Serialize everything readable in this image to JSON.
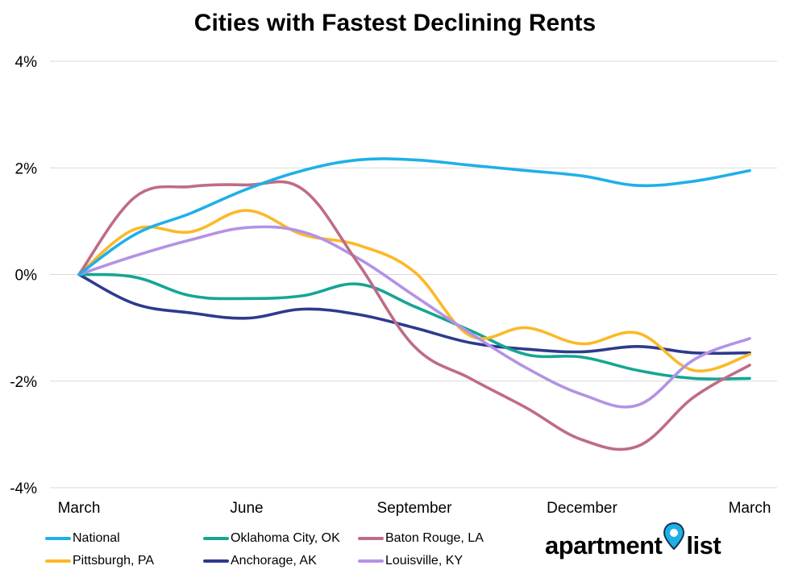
{
  "chart_data": {
    "type": "line",
    "title": "Cities with Fastest Declining Rents",
    "xlabel": "",
    "ylabel": "",
    "ylim": [
      -4,
      4
    ],
    "yticks": [
      4,
      2,
      0,
      -2,
      -4
    ],
    "ytick_labels": [
      "4%",
      "2%",
      "0%",
      "-2%",
      "-4%"
    ],
    "x_tick_labels": [
      {
        "x": 0,
        "label": "March"
      },
      {
        "x": 3,
        "label": "June"
      },
      {
        "x": 6,
        "label": "September"
      },
      {
        "x": 9,
        "label": "December"
      },
      {
        "x": 12,
        "label": "March"
      }
    ],
    "xlim": [
      0,
      12
    ],
    "grid": true,
    "legend_position": "bottom-left",
    "series": [
      {
        "name": "National",
        "color": "#1fb0e8",
        "values": [
          0,
          0.75,
          1.15,
          1.6,
          1.95,
          2.15,
          2.15,
          2.05,
          1.95,
          1.85,
          1.67,
          1.75,
          1.95
        ]
      },
      {
        "name": "Oklahoma City, OK",
        "color": "#16a594",
        "values": [
          0,
          -0.05,
          -0.4,
          -0.45,
          -0.4,
          -0.18,
          -0.6,
          -1.05,
          -1.5,
          -1.55,
          -1.8,
          -1.95,
          -1.95
        ]
      },
      {
        "name": "Baton Rouge, LA",
        "color": "#bf6c84",
        "values": [
          0,
          1.45,
          1.65,
          1.68,
          1.6,
          0.2,
          -1.35,
          -1.95,
          -2.5,
          -3.1,
          -3.22,
          -2.3,
          -1.7
        ]
      },
      {
        "name": "Pittsburgh, PA",
        "color": "#fbb927",
        "values": [
          0,
          0.85,
          0.8,
          1.2,
          0.75,
          0.55,
          0.05,
          -1.15,
          -1.0,
          -1.3,
          -1.1,
          -1.8,
          -1.5
        ]
      },
      {
        "name": "Anchorage, AK",
        "color": "#2e3a8c",
        "values": [
          0,
          -0.55,
          -0.72,
          -0.82,
          -0.65,
          -0.75,
          -1.0,
          -1.28,
          -1.4,
          -1.45,
          -1.35,
          -1.47,
          -1.47
        ]
      },
      {
        "name": "Louisville, KY",
        "color": "#b392e6",
        "values": [
          0,
          0.35,
          0.65,
          0.88,
          0.8,
          0.3,
          -0.4,
          -1.1,
          -1.75,
          -2.25,
          -2.45,
          -1.6,
          -1.2
        ]
      }
    ]
  },
  "logo": {
    "text_left": "apartment",
    "text_right": "list",
    "pin_color": "#1fb0e8"
  }
}
